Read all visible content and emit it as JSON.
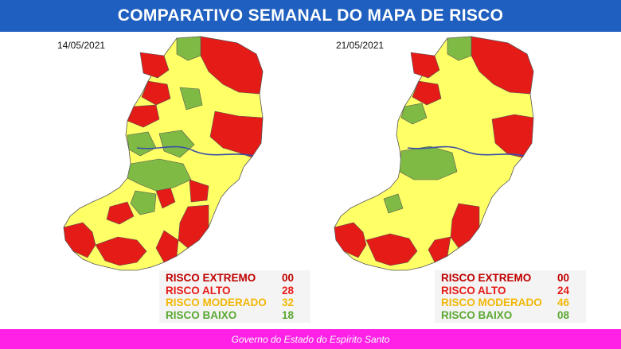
{
  "header": {
    "title": "COMPARATIVO SEMANAL DO MAPA DE RISCO"
  },
  "colors": {
    "extreme": "#c00000",
    "high": "#e51b17",
    "moderate": "#ffff66",
    "low": "#7fba45",
    "header_bg": "#1f5fbf",
    "footer_bg": "#ff22e6"
  },
  "panels": [
    {
      "date": "14/05/2021",
      "legend": [
        {
          "label": "RISCO EXTREMO",
          "count": "00",
          "color": "#c00000"
        },
        {
          "label": "RISCO ALTO",
          "count": "28",
          "color": "#e51b17"
        },
        {
          "label": "RISCO MODERADO",
          "count": "32",
          "color": "#f2b705"
        },
        {
          "label": "RISCO BAIXO",
          "count": "18",
          "color": "#5aa832"
        }
      ]
    },
    {
      "date": "21/05/2021",
      "legend": [
        {
          "label": "RISCO EXTREMO",
          "count": "00",
          "color": "#c00000"
        },
        {
          "label": "RISCO ALTO",
          "count": "24",
          "color": "#e51b17"
        },
        {
          "label": "RISCO MODERADO",
          "count": "46",
          "color": "#f2b705"
        },
        {
          "label": "RISCO BAIXO",
          "count": "08",
          "color": "#5aa832"
        }
      ]
    }
  ],
  "footer": {
    "text": "Governo do Estado do Espírito Santo"
  }
}
